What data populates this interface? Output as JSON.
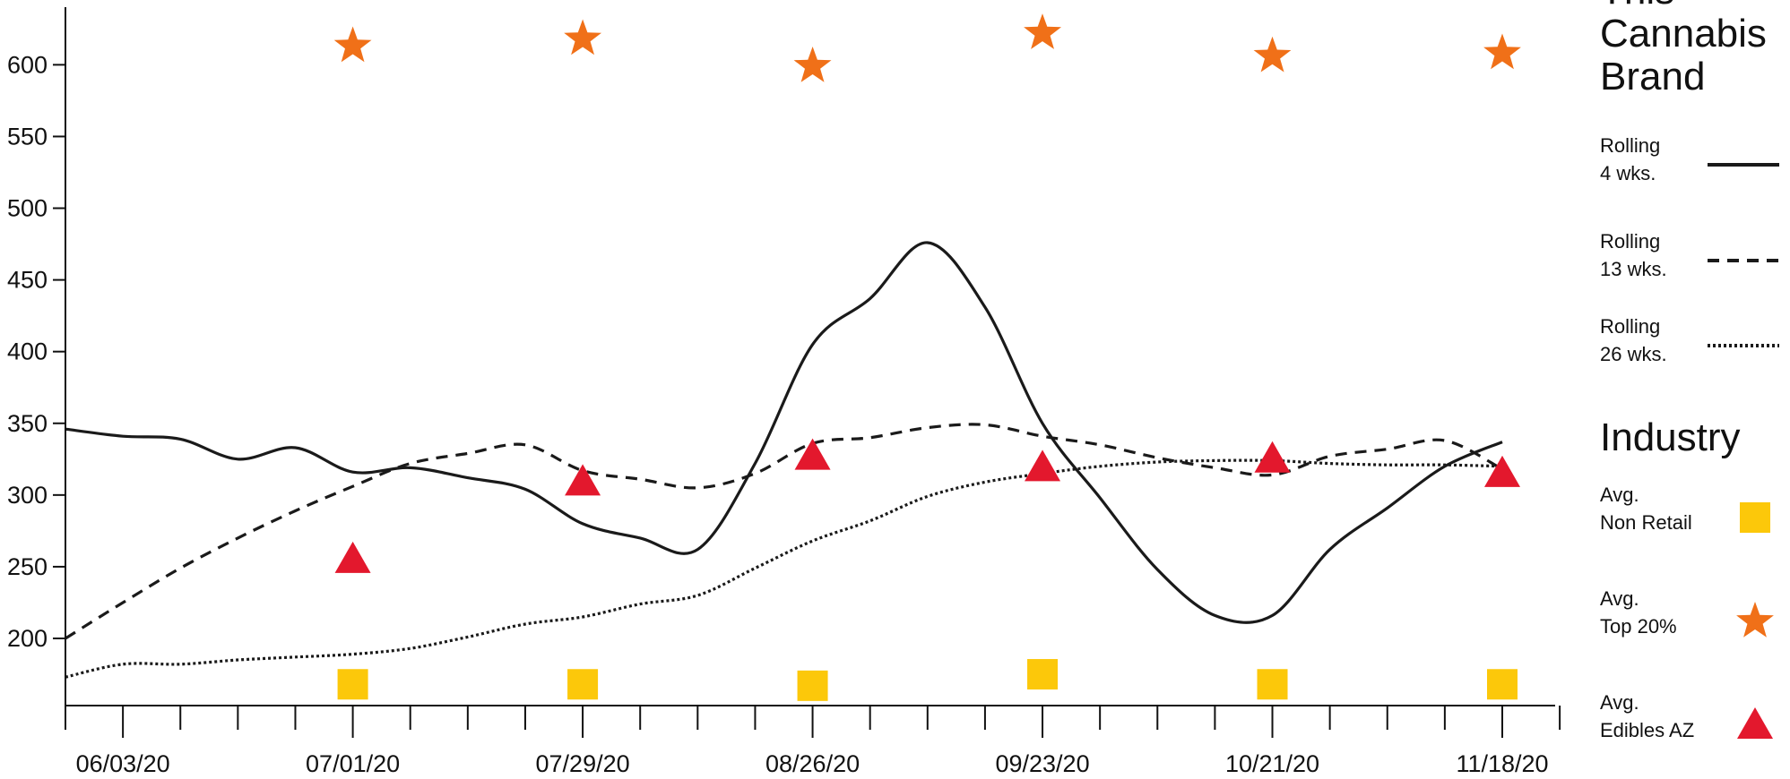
{
  "chart_data": {
    "type": "line",
    "title": "",
    "xlabel": "",
    "ylabel": "",
    "ylim": [
      150,
      640
    ],
    "xlim": [
      0,
      25
    ],
    "y_ticks": [
      200,
      250,
      300,
      350,
      400,
      450,
      500,
      550,
      600
    ],
    "x_tick_labels": [
      {
        "at": 1,
        "label": "06/03/20"
      },
      {
        "at": 5,
        "label": "07/01/20"
      },
      {
        "at": 9,
        "label": "07/29/20"
      },
      {
        "at": 13,
        "label": "08/26/20"
      },
      {
        "at": 17,
        "label": "09/23/20"
      },
      {
        "at": 21,
        "label": "10/21/20"
      },
      {
        "at": 25,
        "label": "11/18/20"
      }
    ],
    "x_minor_ticks": [
      0,
      1,
      2,
      3,
      4,
      5,
      6,
      7,
      8,
      9,
      10,
      11,
      12,
      13,
      14,
      15,
      16,
      17,
      18,
      19,
      20,
      21,
      22,
      23,
      24,
      25,
      26
    ],
    "grid": false,
    "legend_groups": [
      {
        "title_lines": [
          "This",
          "Cannabis",
          "Brand"
        ],
        "items": [
          {
            "name_lines": [
              "Rolling",
              "4 wks."
            ],
            "key": "rolling4"
          },
          {
            "name_lines": [
              "Rolling",
              "13 wks."
            ],
            "key": "rolling13"
          },
          {
            "name_lines": [
              "Rolling",
              "26 wks."
            ],
            "key": "rolling26"
          }
        ]
      },
      {
        "title_lines": [
          "Industry"
        ],
        "items": [
          {
            "name_lines": [
              "Avg.",
              "Non Retail"
            ],
            "key": "nonretail"
          },
          {
            "name_lines": [
              "Avg.",
              "Top 20%"
            ],
            "key": "top20"
          },
          {
            "name_lines": [
              "Avg.",
              "Edibles AZ"
            ],
            "key": "edibles"
          }
        ]
      }
    ],
    "series": [
      {
        "key": "rolling4",
        "style": "solid",
        "color": "#1a1a1a",
        "x": [
          0,
          1,
          2,
          3,
          4,
          5,
          6,
          7,
          8,
          9,
          10,
          11,
          12,
          13,
          14,
          15,
          16,
          17,
          18,
          19,
          20,
          21,
          22,
          23,
          24,
          25
        ],
        "y": [
          346,
          341,
          339,
          325,
          333,
          316,
          319,
          312,
          304,
          280,
          270,
          262,
          322,
          405,
          437,
          476,
          431,
          350,
          298,
          248,
          216,
          216,
          262,
          291,
          320,
          337
        ]
      },
      {
        "key": "rolling13",
        "style": "dashed",
        "color": "#1a1a1a",
        "x": [
          0,
          1,
          2,
          3,
          4,
          5,
          6,
          7,
          8,
          9,
          10,
          11,
          12,
          13,
          14,
          15,
          16,
          17,
          18,
          19,
          20,
          21,
          22,
          23,
          24,
          25
        ],
        "y": [
          200,
          225,
          249,
          270,
          289,
          306,
          322,
          329,
          335,
          317,
          311,
          305,
          315,
          336,
          340,
          347,
          349,
          341,
          335,
          326,
          319,
          314,
          327,
          332,
          338,
          318
        ]
      },
      {
        "key": "rolling26",
        "style": "dotted",
        "color": "#1a1a1a",
        "x": [
          0,
          1,
          2,
          3,
          4,
          5,
          6,
          7,
          8,
          9,
          10,
          11,
          12,
          13,
          14,
          15,
          16,
          17,
          18,
          19,
          20,
          21,
          22,
          23,
          24,
          25
        ],
        "y": [
          173,
          182,
          182,
          185,
          187,
          189,
          193,
          201,
          210,
          215,
          224,
          230,
          249,
          268,
          282,
          299,
          309,
          315,
          320,
          323,
          324,
          324,
          322,
          321,
          321,
          320
        ]
      }
    ],
    "markers": [
      {
        "key": "top20",
        "shape": "star",
        "color": "#f07018",
        "x": [
          5,
          9,
          13,
          17,
          21,
          25
        ],
        "y": [
          613,
          618,
          599,
          622,
          606,
          608
        ]
      },
      {
        "key": "edibles",
        "shape": "triangle",
        "color": "#e3182d",
        "x": [
          5,
          9,
          13,
          17,
          21,
          25
        ],
        "y": [
          255,
          309,
          327,
          319,
          325,
          315
        ]
      },
      {
        "key": "nonretail",
        "shape": "square",
        "color": "#fcc80a",
        "x": [
          5,
          9,
          13,
          17,
          21,
          25
        ],
        "y": [
          168,
          168,
          167,
          175,
          168,
          168
        ]
      }
    ]
  }
}
